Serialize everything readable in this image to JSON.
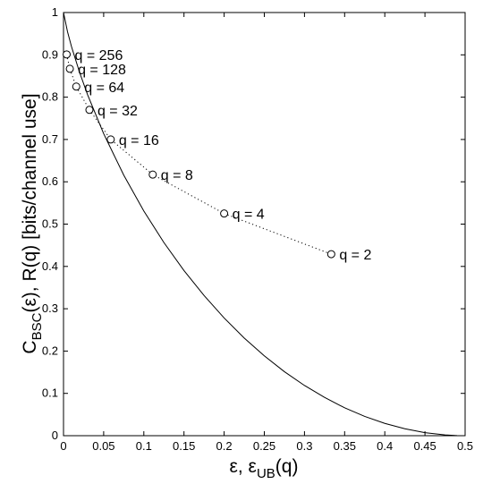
{
  "chart_data": {
    "type": "line",
    "title": "",
    "xlabel": {
      "main": "ε, ε",
      "sub": "UB",
      "tail": "(q)"
    },
    "ylabel": {
      "main": "C",
      "sub": "BSC",
      "tail": "(ε), R(q) [bits/channel use]"
    },
    "xlim": [
      0,
      0.5
    ],
    "ylim": [
      0,
      1
    ],
    "xticks": [
      "0",
      "0.05",
      "0.1",
      "0.15",
      "0.2",
      "0.25",
      "0.3",
      "0.35",
      "0.4",
      "0.45",
      "0.5"
    ],
    "yticks": [
      "0",
      "0.1",
      "0.2",
      "0.3",
      "0.4",
      "0.5",
      "0.6",
      "0.7",
      "0.8",
      "0.9",
      "1"
    ],
    "grid": false,
    "series": [
      {
        "style": "solid",
        "x": [
          0,
          0.005,
          0.01,
          0.02,
          0.03,
          0.05,
          0.075,
          0.1,
          0.125,
          0.15,
          0.175,
          0.2,
          0.225,
          0.25,
          0.275,
          0.3,
          0.325,
          0.35,
          0.375,
          0.4,
          0.425,
          0.45,
          0.475,
          0.49,
          0.5
        ],
        "y": [
          1.0,
          0.9546,
          0.9192,
          0.8586,
          0.8056,
          0.7136,
          0.6157,
          0.531,
          0.4564,
          0.3902,
          0.3312,
          0.2781,
          0.2307,
          0.1887,
          0.1513,
          0.1187,
          0.0904,
          0.0659,
          0.0456,
          0.029,
          0.0163,
          0.0072,
          0.0018,
          0.0003,
          0.0
        ]
      },
      {
        "style": "dotted",
        "marker": "circle",
        "x": [
          0.003922,
          0.007874,
          0.015873,
          0.032258,
          0.058824,
          0.111111,
          0.2,
          0.333333
        ],
        "y": [
          0.901,
          0.867,
          0.825,
          0.77,
          0.7,
          0.617,
          0.525,
          0.429
        ],
        "labels": [
          "q = 256",
          "q = 128",
          "q = 64",
          "q = 32",
          "q = 16",
          "q = 8",
          "q = 4",
          "q = 2"
        ]
      }
    ]
  }
}
